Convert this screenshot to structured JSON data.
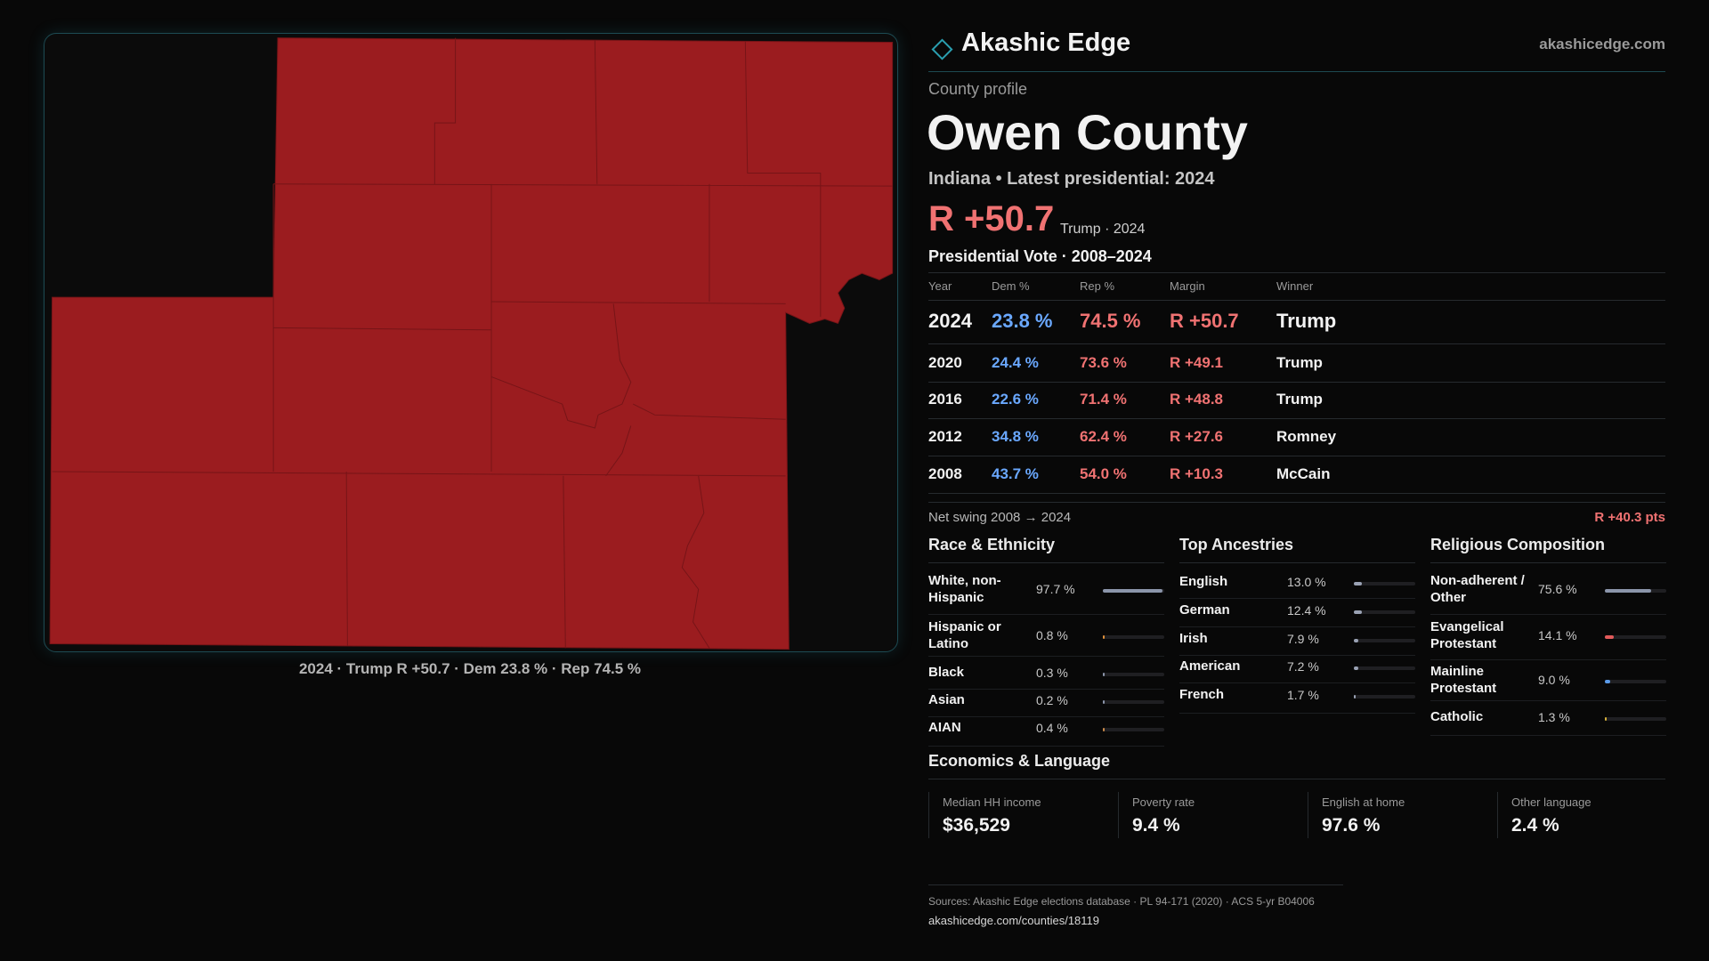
{
  "brand": {
    "name": "Akashic Edge",
    "site": "akashicedge.com"
  },
  "header": {
    "kicker": "County profile",
    "title": "Owen County",
    "subtitle": "Indiana • Latest presidential: 2024",
    "headline_margin": "R +50.7",
    "headline_note": "Trump · 2024"
  },
  "map": {
    "caption": "2024 · Trump R +50.7 · Dem 23.8 % · Rep 74.5 %"
  },
  "vote_table": {
    "title": "Presidential Vote · 2008–2024",
    "columns": [
      "Year",
      "Dem %",
      "Rep %",
      "Margin",
      "Winner"
    ],
    "rows": [
      [
        "2024",
        "23.8 %",
        "74.5 %",
        "R +50.7",
        "Trump"
      ],
      [
        "2020",
        "24.4 %",
        "73.6 %",
        "R +49.1",
        "Trump"
      ],
      [
        "2016",
        "22.6 %",
        "71.4 %",
        "R +48.8",
        "Trump"
      ],
      [
        "2012",
        "34.8 %",
        "62.4 %",
        "R +27.6",
        "Romney"
      ],
      [
        "2008",
        "43.7 %",
        "54.0 %",
        "R +10.3",
        "McCain"
      ]
    ]
  },
  "swing": {
    "label": "Net swing 2008 → 2024",
    "value": "R +40.3 pts"
  },
  "panels": [
    {
      "title": "Race & Ethnicity",
      "rows": [
        {
          "name": "White, non-Hispanic",
          "value": 97.7,
          "label": "97.7 %",
          "color": "#8b95aa"
        },
        {
          "name": "Hispanic or Latino",
          "value": 0.8,
          "label": "0.8 %",
          "color": "#e0913a"
        },
        {
          "name": "Black",
          "value": 0.3,
          "label": "0.3 %",
          "color": "#8b95aa"
        },
        {
          "name": "Asian",
          "value": 0.2,
          "label": "0.2 %",
          "color": "#8b95aa"
        },
        {
          "name": "AIAN",
          "value": 0.4,
          "label": "0.4 %",
          "color": "#c98a4a"
        }
      ]
    },
    {
      "title": "Top Ancestries",
      "rows": [
        {
          "name": "English",
          "value": 13.0,
          "label": "13.0 %",
          "color": "#9aa2b4"
        },
        {
          "name": "German",
          "value": 12.4,
          "label": "12.4 %",
          "color": "#9aa2b4"
        },
        {
          "name": "Irish",
          "value": 7.9,
          "label": "7.9 %",
          "color": "#9aa2b4"
        },
        {
          "name": "American",
          "value": 7.2,
          "label": "7.2 %",
          "color": "#9aa2b4"
        },
        {
          "name": "French",
          "value": 1.7,
          "label": "1.7 %",
          "color": "#9aa2b4"
        }
      ]
    },
    {
      "title": "Religious Composition",
      "rows": [
        {
          "name": "Non-adherent / Other",
          "value": 75.6,
          "label": "75.6 %",
          "color": "#8b95aa"
        },
        {
          "name": "Evangelical Protestant",
          "value": 14.1,
          "label": "14.1 %",
          "color": "#e25a5a"
        },
        {
          "name": "Mainline Protestant",
          "value": 9.0,
          "label": "9.0 %",
          "color": "#5a9ae8"
        },
        {
          "name": "Catholic",
          "value": 1.3,
          "label": "1.3 %",
          "color": "#d8b23a"
        }
      ]
    }
  ],
  "economics": {
    "title": "Economics & Language",
    "cards": [
      {
        "label": "Median HH income",
        "value": "$36,529"
      },
      {
        "label": "Poverty rate",
        "value": "9.4 %"
      },
      {
        "label": "English at home",
        "value": "97.6 %"
      },
      {
        "label": "Other language",
        "value": "2.4 %"
      }
    ]
  },
  "sources": {
    "text": "Sources: Akashic Edge elections database · PL 94-171 (2020) · ACS 5-yr B04006",
    "link": "akashicedge.com/counties/18119"
  }
}
